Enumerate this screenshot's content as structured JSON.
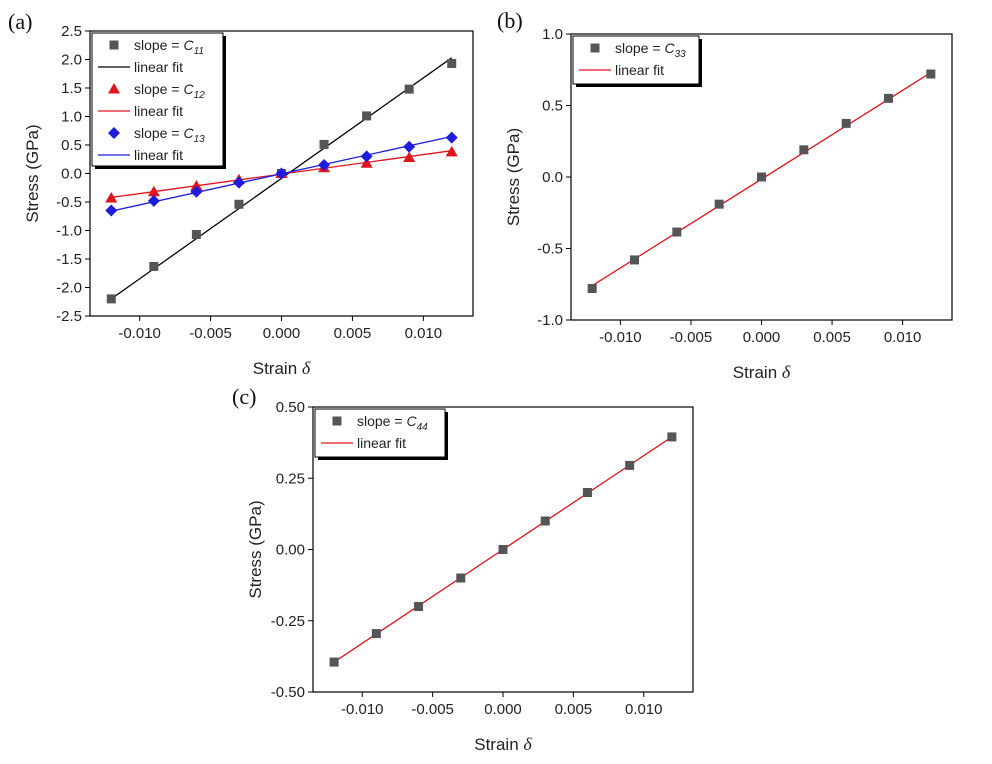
{
  "chart_data": [
    {
      "panel": "(a)",
      "type": "scatter",
      "xlabel": "Strain",
      "xlabel_symbol": "δ",
      "ylabel": "Stress (GPa)",
      "xlim": [
        -0.0135,
        0.0135
      ],
      "ylim": [
        -2.5,
        2.5
      ],
      "xticks": [
        -0.01,
        -0.005,
        0.0,
        0.005,
        0.01
      ],
      "xtick_labels": [
        "-0.010",
        "-0.005",
        "0.000",
        "0.005",
        "0.010"
      ],
      "yticks": [
        -2.5,
        -2.0,
        -1.5,
        -1.0,
        -0.5,
        0.0,
        0.5,
        1.0,
        1.5,
        2.0,
        2.5
      ],
      "ytick_labels": [
        "-2.5",
        "-2.0",
        "-1.5",
        "-1.0",
        "-0.5",
        "0.0",
        "0.5",
        "1.0",
        "1.5",
        "2.0",
        "2.5"
      ],
      "grid": false,
      "legend_position": "top-left",
      "x": [
        -0.012,
        -0.009,
        -0.006,
        -0.003,
        0.0,
        0.003,
        0.006,
        0.009,
        0.012
      ],
      "series": [
        {
          "legend_prefix": "slope = ",
          "legend_symbol": "C",
          "legend_subscript": "11",
          "marker": "square",
          "marker_color": "#555555",
          "y": [
            -2.2,
            -1.63,
            -1.07,
            -0.54,
            0.0,
            0.51,
            1.01,
            1.48,
            1.93
          ],
          "fit": {
            "label": "linear fit",
            "color": "#000000",
            "x": [
              -0.012,
              0.012
            ],
            "y": [
              -2.2,
              2.03
            ]
          }
        },
        {
          "legend_prefix": "slope = ",
          "legend_symbol": "C",
          "legend_subscript": "12",
          "marker": "triangle",
          "marker_color": "#e0141c",
          "y": [
            -0.43,
            -0.32,
            -0.22,
            -0.11,
            0.0,
            0.1,
            0.18,
            0.28,
            0.38
          ],
          "fit": {
            "label": "linear fit",
            "color": "#e0141c",
            "x": [
              -0.012,
              0.012
            ],
            "y": [
              -0.42,
              0.4
            ]
          }
        },
        {
          "legend_prefix": "slope = ",
          "legend_symbol": "C",
          "legend_subscript": "13",
          "marker": "diamond",
          "marker_color": "#1d1ddc",
          "y": [
            -0.65,
            -0.48,
            -0.32,
            -0.16,
            0.0,
            0.15,
            0.3,
            0.47,
            0.63
          ],
          "fit": {
            "label": "linear fit",
            "color": "#1d1ddc",
            "x": [
              -0.012,
              0.012
            ],
            "y": [
              -0.66,
              0.65
            ]
          }
        }
      ]
    },
    {
      "panel": "(b)",
      "type": "scatter",
      "xlabel": "Strain",
      "xlabel_symbol": "δ",
      "ylabel": "Stress (GPa)",
      "xlim": [
        -0.0135,
        0.0135
      ],
      "ylim": [
        -1.0,
        1.0
      ],
      "xticks": [
        -0.01,
        -0.005,
        0.0,
        0.005,
        0.01
      ],
      "xtick_labels": [
        "-0.010",
        "-0.005",
        "0.000",
        "0.005",
        "0.010"
      ],
      "yticks": [
        -1.0,
        -0.5,
        0.0,
        0.5,
        1.0
      ],
      "ytick_labels": [
        "-1.0",
        "-0.5",
        "0.0",
        "0.5",
        "1.0"
      ],
      "grid": false,
      "legend_position": "top-left",
      "x": [
        -0.012,
        -0.009,
        -0.006,
        -0.003,
        0.0,
        0.003,
        0.006,
        0.009,
        0.012
      ],
      "series": [
        {
          "legend_prefix": "slope = ",
          "legend_symbol": "C",
          "legend_subscript": "33",
          "marker": "square",
          "marker_color": "#555555",
          "y": [
            -0.78,
            -0.58,
            -0.385,
            -0.19,
            0.0,
            0.19,
            0.375,
            0.55,
            0.72
          ],
          "fit": {
            "label": "linear fit",
            "color": "#e0141c",
            "x": [
              -0.012,
              0.012
            ],
            "y": [
              -0.76,
              0.73
            ]
          }
        }
      ]
    },
    {
      "panel": "(c)",
      "type": "scatter",
      "xlabel": "Strain",
      "xlabel_symbol": "δ",
      "ylabel": "Stress (GPa)",
      "xlim": [
        -0.0135,
        0.0135
      ],
      "ylim": [
        -0.5,
        0.5
      ],
      "xticks": [
        -0.01,
        -0.005,
        0.0,
        0.005,
        0.01
      ],
      "xtick_labels": [
        "-0.010",
        "-0.005",
        "0.000",
        "0.005",
        "0.010"
      ],
      "yticks": [
        -0.5,
        -0.25,
        0.0,
        0.25,
        0.5
      ],
      "ytick_labels": [
        "-0.50",
        "-0.25",
        "0.00",
        "0.25",
        "0.50"
      ],
      "grid": false,
      "legend_position": "top-left",
      "x": [
        -0.012,
        -0.009,
        -0.006,
        -0.003,
        0.0,
        0.003,
        0.006,
        0.009,
        0.012
      ],
      "series": [
        {
          "legend_prefix": "slope = ",
          "legend_symbol": "C",
          "legend_subscript": "44",
          "marker": "square",
          "marker_color": "#555555",
          "y": [
            -0.395,
            -0.295,
            -0.2,
            -0.1,
            0.0,
            0.1,
            0.2,
            0.295,
            0.395
          ],
          "fit": {
            "label": "linear fit",
            "color": "#e0141c",
            "x": [
              -0.012,
              0.012
            ],
            "y": [
              -0.395,
              0.395
            ]
          }
        }
      ]
    }
  ]
}
